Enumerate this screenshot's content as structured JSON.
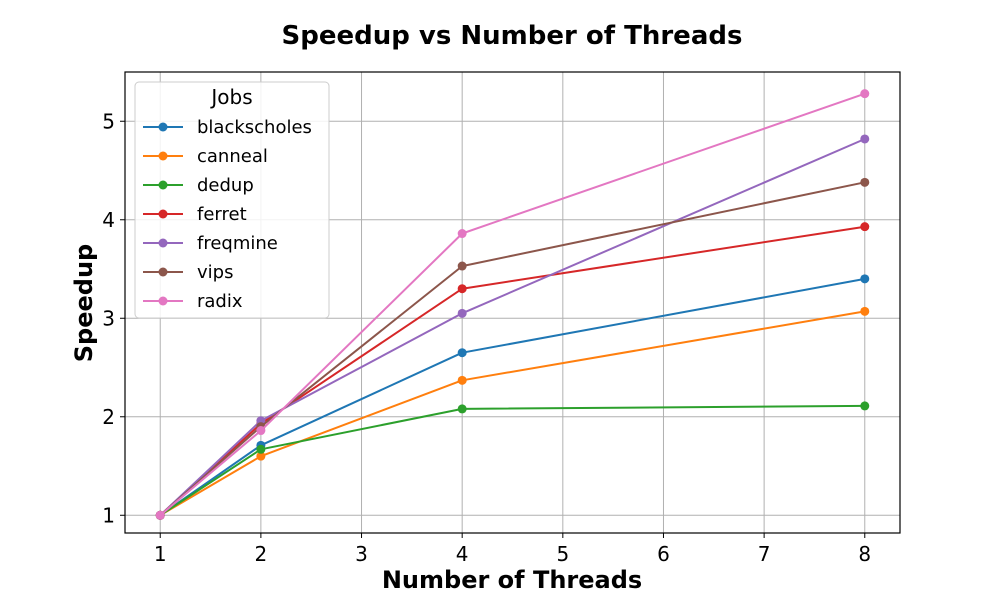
{
  "chart_data": {
    "type": "line",
    "title": "Speedup vs Number of Threads",
    "xlabel": "Number of Threads",
    "ylabel": "Speedup",
    "xlim": [
      0.65,
      8.35
    ],
    "ylim": [
      0.82,
      5.5
    ],
    "x_ticks": [
      "1",
      "2",
      "3",
      "4",
      "5",
      "6",
      "7",
      "8"
    ],
    "y_ticks": [
      "1",
      "2",
      "3",
      "4",
      "5"
    ],
    "grid": true,
    "legend_title": "Jobs",
    "legend_position": "top-left",
    "x": [
      1,
      2,
      4,
      8
    ],
    "series": [
      {
        "name": "blackscholes",
        "color": "#1f77b4",
        "values": [
          1.0,
          1.71,
          2.65,
          3.4
        ]
      },
      {
        "name": "canneal",
        "color": "#ff7f0e",
        "values": [
          1.0,
          1.6,
          2.37,
          3.07
        ]
      },
      {
        "name": "dedup",
        "color": "#2ca02c",
        "values": [
          1.0,
          1.67,
          2.08,
          2.11
        ]
      },
      {
        "name": "ferret",
        "color": "#d62728",
        "values": [
          1.0,
          1.93,
          3.3,
          3.93
        ]
      },
      {
        "name": "freqmine",
        "color": "#9467bd",
        "values": [
          1.0,
          1.96,
          3.05,
          4.82
        ]
      },
      {
        "name": "vips",
        "color": "#8c564b",
        "values": [
          1.0,
          1.9,
          3.53,
          4.38
        ]
      },
      {
        "name": "radix",
        "color": "#e377c2",
        "values": [
          1.0,
          1.86,
          3.86,
          5.28
        ]
      }
    ]
  }
}
